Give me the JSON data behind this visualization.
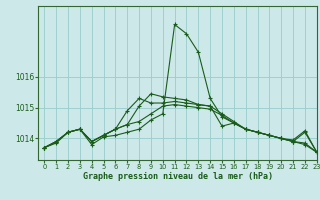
{
  "title": "Graphe pression niveau de la mer (hPa)",
  "bg_color": "#cce8e8",
  "grid_color": "#99cccc",
  "line_color": "#1a5c1a",
  "xlim": [
    -0.5,
    23
  ],
  "ylim": [
    1013.3,
    1018.3
  ],
  "yticks": [
    1014,
    1015,
    1016
  ],
  "xticks": [
    0,
    1,
    2,
    3,
    4,
    5,
    6,
    7,
    8,
    9,
    10,
    11,
    12,
    13,
    14,
    15,
    16,
    17,
    18,
    19,
    20,
    21,
    22,
    23
  ],
  "series": [
    [
      1013.7,
      1013.85,
      1014.2,
      1014.3,
      1013.8,
      1014.05,
      1014.1,
      1014.2,
      1014.3,
      1014.6,
      1014.8,
      1017.7,
      1017.4,
      1016.8,
      1015.3,
      1014.7,
      1014.5,
      1014.3,
      1014.2,
      1014.1,
      1014.0,
      1013.95,
      1014.25,
      1013.55
    ],
    [
      1013.7,
      1013.9,
      1014.2,
      1014.3,
      1013.9,
      1014.1,
      1014.3,
      1014.9,
      1015.3,
      1015.15,
      1015.15,
      1015.2,
      1015.15,
      1015.1,
      1015.05,
      1014.4,
      1014.5,
      1014.3,
      1014.2,
      1014.1,
      1014.0,
      1013.9,
      1014.2,
      1013.55
    ],
    [
      1013.7,
      1013.9,
      1014.2,
      1014.3,
      1013.9,
      1014.1,
      1014.3,
      1014.45,
      1015.05,
      1015.45,
      1015.35,
      1015.3,
      1015.25,
      1015.1,
      1015.05,
      1014.8,
      1014.55,
      1014.3,
      1014.2,
      1014.1,
      1014.0,
      1013.9,
      1013.85,
      1013.55
    ],
    [
      1013.7,
      1013.9,
      1014.2,
      1014.3,
      1013.9,
      1014.1,
      1014.3,
      1014.45,
      1014.55,
      1014.8,
      1015.05,
      1015.1,
      1015.05,
      1015.0,
      1014.95,
      1014.75,
      1014.5,
      1014.3,
      1014.2,
      1014.1,
      1014.0,
      1013.9,
      1013.8,
      1013.55
    ]
  ]
}
